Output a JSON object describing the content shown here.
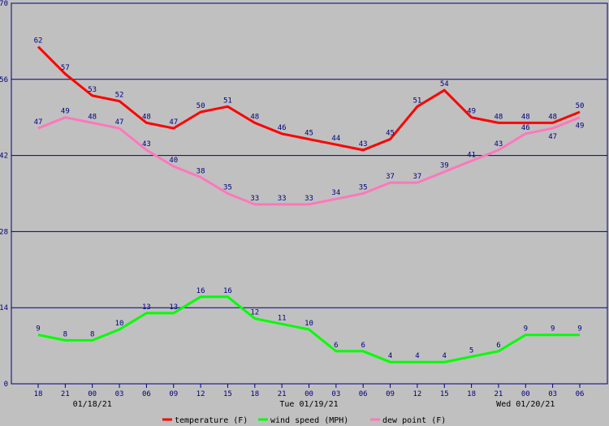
{
  "chart_data": {
    "type": "line",
    "ylim": [
      0,
      70
    ],
    "yticks": [
      0,
      14,
      28,
      42,
      56,
      70
    ],
    "grid": true,
    "x": [
      "18",
      "21",
      "00",
      "03",
      "06",
      "09",
      "12",
      "15",
      "18",
      "21",
      "00",
      "03",
      "06",
      "09",
      "12",
      "15",
      "18",
      "21",
      "00",
      "03",
      "06"
    ],
    "date_labels": [
      {
        "index": 2,
        "label": "01/18/21"
      },
      {
        "index": 10,
        "label": "Tue 01/19/21"
      },
      {
        "index": 18,
        "label": "Wed 01/20/21"
      }
    ],
    "series": [
      {
        "name": "temperature (F)",
        "color": "#ff0000",
        "values": [
          62,
          57,
          53,
          52,
          48,
          47,
          50,
          51,
          48,
          46,
          45,
          44,
          43,
          45,
          51,
          54,
          49,
          48,
          48,
          48,
          50
        ]
      },
      {
        "name": "wind speed (MPH)",
        "color": "#00ff00",
        "values": [
          9,
          8,
          8,
          10,
          13,
          13,
          16,
          16,
          12,
          11,
          10,
          6,
          6,
          4,
          4,
          4,
          5,
          6,
          9,
          9,
          9
        ]
      },
      {
        "name": "dew point (F)",
        "color": "#ff77bb",
        "values": [
          47,
          49,
          48,
          47,
          43,
          40,
          38,
          35,
          33,
          33,
          33,
          34,
          35,
          37,
          37,
          39,
          41,
          43,
          46,
          47,
          49
        ]
      }
    ],
    "legend": "bottom-center"
  },
  "colors": {
    "axis": "#000080",
    "label": "#000080",
    "background": "#c0c0c0"
  }
}
